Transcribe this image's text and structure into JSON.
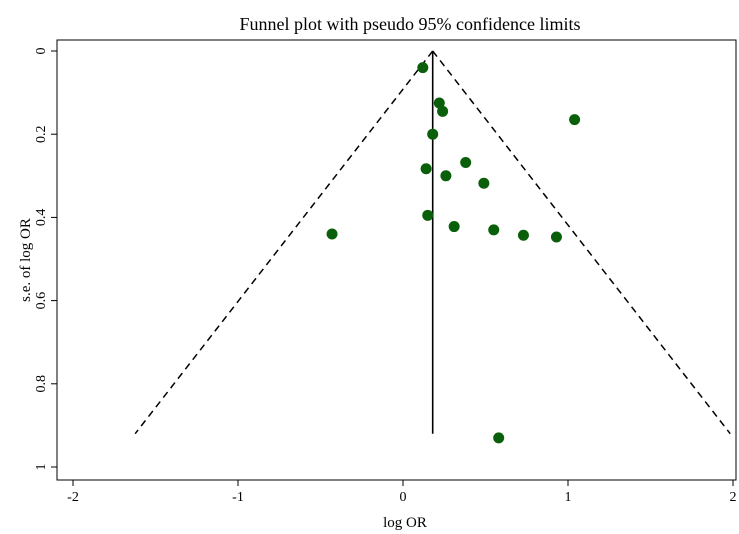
{
  "chart_data": {
    "type": "scatter",
    "title": "Funnel plot with pseudo 95% confidence limits",
    "xlabel": "log OR",
    "ylabel": "s.e. of log OR",
    "xlim": [
      -2,
      2
    ],
    "ylim": [
      0,
      1
    ],
    "y_reversed": true,
    "x_ticks": [
      -2,
      -1,
      0,
      1,
      2
    ],
    "y_ticks": [
      0,
      0.2,
      0.4,
      0.6,
      0.8,
      1
    ],
    "x_tick_labels": [
      "-2",
      "-1",
      "0",
      "1",
      "2"
    ],
    "y_tick_labels": [
      "0",
      "0.2",
      "0.4",
      "0.6",
      "0.8",
      "1"
    ],
    "grid": false,
    "pooled_estimate": 0.18,
    "se_max": 0.92,
    "point_color": "#0a5f0a",
    "line_color": "#000000",
    "points": [
      {
        "x": 0.12,
        "y": 0.04
      },
      {
        "x": 0.22,
        "y": 0.125
      },
      {
        "x": 0.24,
        "y": 0.145
      },
      {
        "x": 1.04,
        "y": 0.165
      },
      {
        "x": 0.18,
        "y": 0.2
      },
      {
        "x": 0.38,
        "y": 0.268
      },
      {
        "x": 0.14,
        "y": 0.283
      },
      {
        "x": 0.26,
        "y": 0.3
      },
      {
        "x": 0.49,
        "y": 0.318
      },
      {
        "x": 0.15,
        "y": 0.395
      },
      {
        "x": 0.31,
        "y": 0.422
      },
      {
        "x": 0.55,
        "y": 0.43
      },
      {
        "x": -0.43,
        "y": 0.44
      },
      {
        "x": 0.73,
        "y": 0.443
      },
      {
        "x": 0.93,
        "y": 0.447
      },
      {
        "x": 0.58,
        "y": 0.93
      }
    ]
  }
}
